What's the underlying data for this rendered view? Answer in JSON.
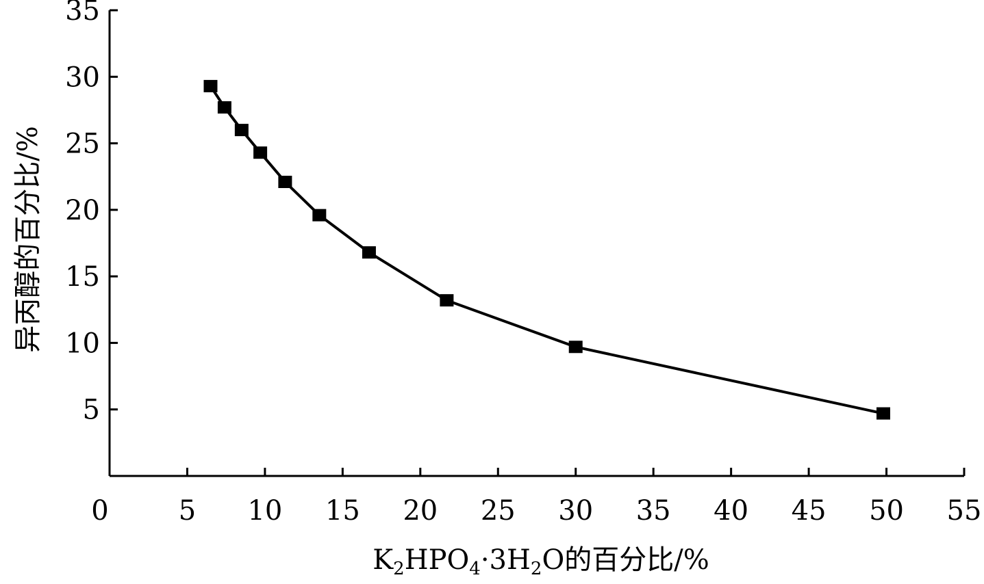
{
  "chart_data": {
    "type": "line",
    "xlabel": {
      "parts": [
        "K",
        "2",
        "HPO",
        "4",
        "·3H",
        "2",
        "O的百分比/%"
      ],
      "subscript": [
        false,
        true,
        false,
        true,
        false,
        true,
        false
      ]
    },
    "ylabel": "异丙醇的百分比/%",
    "xlim": [
      0,
      55
    ],
    "ylim": [
      0,
      35
    ],
    "x_ticks": [
      0,
      5,
      10,
      15,
      20,
      25,
      30,
      35,
      40,
      45,
      50,
      55
    ],
    "x_tick_labels": [
      "0",
      "5",
      "10",
      "15",
      "20",
      "25",
      "30",
      "35",
      "40",
      "45",
      "50",
      "55"
    ],
    "y_ticks": [
      5,
      10,
      15,
      20,
      25,
      30,
      35
    ],
    "y_tick_labels": [
      "5",
      "10",
      "15",
      "20",
      "25",
      "30",
      "35"
    ],
    "grid": false,
    "marker": "square",
    "line_color": "#000000",
    "series": [
      {
        "x": [
          6.5,
          7.4,
          8.5,
          9.7,
          11.3,
          13.5,
          16.7,
          21.7,
          30.0,
          49.8
        ],
        "y": [
          29.3,
          27.7,
          26.0,
          24.3,
          22.1,
          19.6,
          16.8,
          13.2,
          9.7,
          4.7
        ]
      }
    ]
  }
}
